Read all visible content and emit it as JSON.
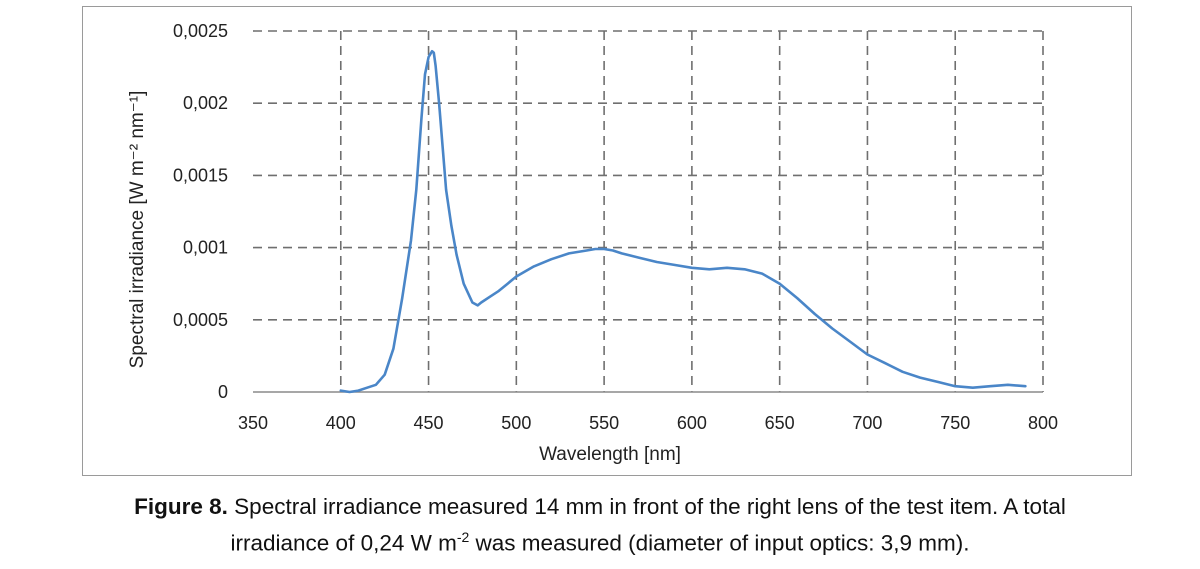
{
  "chart_data": {
    "type": "line",
    "ylabel": "Spectral irradiance [W m⁻² nm⁻¹]",
    "xlabel": "Wavelength [nm]",
    "xlim": [
      350,
      800
    ],
    "ylim": [
      0,
      0.0025
    ],
    "x_ticks": [
      350,
      400,
      450,
      500,
      550,
      600,
      650,
      700,
      750,
      800
    ],
    "x_tick_labels": [
      "350",
      "400",
      "450",
      "500",
      "550",
      "600",
      "650",
      "700",
      "750",
      "800"
    ],
    "y_ticks": [
      0,
      0.0005,
      0.001,
      0.0015,
      0.002,
      0.0025
    ],
    "y_tick_labels": [
      "0",
      "0,0005",
      "0,001",
      "0,0015",
      "0,002",
      "0,0025"
    ],
    "grid": true,
    "line_color": "#4a86c8",
    "series": [
      {
        "x": [
          400,
          405,
          410,
          415,
          420,
          425,
          430,
          435,
          440,
          443,
          446,
          448,
          450,
          452,
          453,
          454,
          456,
          458,
          460,
          463,
          466,
          470,
          475,
          478,
          480,
          485,
          490,
          495,
          500,
          510,
          520,
          530,
          540,
          545,
          550,
          555,
          560,
          570,
          580,
          590,
          600,
          610,
          620,
          630,
          640,
          650,
          660,
          670,
          680,
          690,
          700,
          710,
          720,
          730,
          740,
          750,
          760,
          770,
          780,
          790
        ],
        "y": [
          1e-05,
          0.0,
          1e-05,
          3e-05,
          5e-05,
          0.00012,
          0.0003,
          0.00065,
          0.00105,
          0.0014,
          0.0019,
          0.0022,
          0.00232,
          0.00236,
          0.00235,
          0.00226,
          0.002,
          0.0017,
          0.0014,
          0.00115,
          0.00095,
          0.00075,
          0.00062,
          0.0006,
          0.00062,
          0.00066,
          0.0007,
          0.00075,
          0.0008,
          0.00087,
          0.00092,
          0.00096,
          0.00098,
          0.00099,
          0.00099,
          0.00098,
          0.00096,
          0.00093,
          0.0009,
          0.00088,
          0.00086,
          0.00085,
          0.00086,
          0.00085,
          0.00082,
          0.00075,
          0.00065,
          0.00054,
          0.00044,
          0.00035,
          0.00026,
          0.0002,
          0.00014,
          0.0001,
          7e-05,
          4e-05,
          3e-05,
          4e-05,
          5e-05,
          4e-05
        ]
      }
    ]
  },
  "caption": {
    "label": "Figure 8.",
    "text_line1": " Spectral irradiance measured 14 mm in front of the right lens of the test item. A total",
    "text_line2_a": "irradiance of 0,24 W m",
    "text_line2_sup": "-2",
    "text_line2_b": " was measured (diameter of input optics: 3,9 mm)."
  }
}
